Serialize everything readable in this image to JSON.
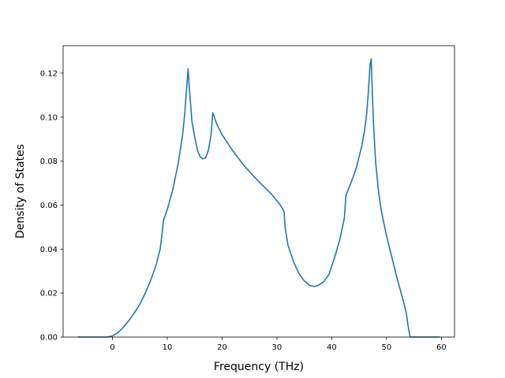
{
  "chart_data": {
    "type": "line",
    "title": "",
    "xlabel": "Frequency (THz)",
    "ylabel": "Density of States",
    "xlim": [
      -9,
      62.4
    ],
    "ylim": [
      0,
      0.1325
    ],
    "xticks": [
      0,
      10,
      20,
      30,
      40,
      50,
      60
    ],
    "xtick_labels": [
      "0",
      "10",
      "20",
      "30",
      "40",
      "50",
      "60"
    ],
    "yticks": [
      0.0,
      0.02,
      0.04,
      0.06,
      0.08,
      0.1,
      0.12
    ],
    "ytick_labels": [
      "0.00",
      "0.02",
      "0.04",
      "0.06",
      "0.08",
      "0.10",
      "0.12"
    ],
    "grid": false,
    "legend": "none",
    "series": [
      {
        "color": "#1f77b4",
        "x": [
          -6.3,
          -3,
          -1,
          0,
          1,
          2,
          3,
          4,
          5,
          6,
          7,
          8,
          8.7,
          9.0,
          9.3,
          10,
          11,
          12,
          12.8,
          13.2,
          13.5,
          13.8,
          14.0,
          14.5,
          15.0,
          15.5,
          16.0,
          16.5,
          17.0,
          17.5,
          18.0,
          18.3,
          19.0,
          20,
          22,
          24,
          26,
          28,
          29,
          30,
          30.5,
          31.0,
          31.3,
          31.5,
          32,
          33,
          34,
          35,
          36,
          36.8,
          37.5,
          38.5,
          39.5,
          40.5,
          41.5,
          42.3,
          42.6,
          43.5,
          44.5,
          45.5,
          46.0,
          46.4,
          46.7,
          47.0,
          47.2,
          47.4,
          47.6,
          48.0,
          48.5,
          49.0,
          50,
          51,
          52,
          53,
          53.6,
          54.0,
          54.3,
          56,
          59.7
        ],
        "y": [
          0.0,
          0.0,
          0.0,
          0.0005,
          0.002,
          0.0045,
          0.0075,
          0.011,
          0.015,
          0.02,
          0.026,
          0.033,
          0.04,
          0.046,
          0.053,
          0.058,
          0.067,
          0.079,
          0.092,
          0.102,
          0.112,
          0.122,
          0.114,
          0.098,
          0.091,
          0.085,
          0.082,
          0.081,
          0.0815,
          0.085,
          0.092,
          0.102,
          0.097,
          0.092,
          0.0845,
          0.078,
          0.0725,
          0.0675,
          0.065,
          0.062,
          0.0605,
          0.0585,
          0.057,
          0.05,
          0.042,
          0.0345,
          0.029,
          0.0255,
          0.0235,
          0.023,
          0.0235,
          0.025,
          0.0285,
          0.036,
          0.0445,
          0.054,
          0.0645,
          0.07,
          0.077,
          0.087,
          0.094,
          0.102,
          0.112,
          0.124,
          0.1265,
          0.112,
          0.098,
          0.08,
          0.067,
          0.058,
          0.046,
          0.036,
          0.026,
          0.017,
          0.011,
          0.004,
          0.0,
          0.0,
          0.0
        ]
      }
    ]
  }
}
